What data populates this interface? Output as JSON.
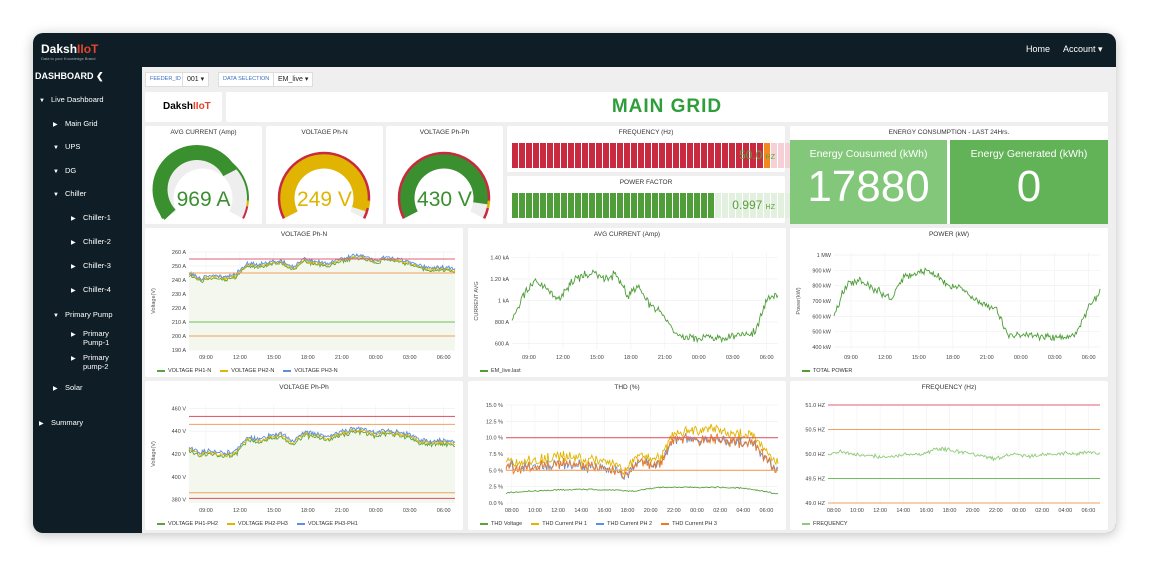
{
  "brand": {
    "name": "Daksh",
    "suffix": "IIoT",
    "tagline": "Data to your Knowledge Brand"
  },
  "topnav": {
    "home": "Home",
    "account": "Account ▾"
  },
  "sidebar": {
    "title": "DASHBOARD",
    "collapse_icon": "chevron-left-icon",
    "items": [
      {
        "label": "Live Dashboard",
        "arrow": "▼"
      },
      {
        "label": "Main Grid",
        "arrow": "▶"
      },
      {
        "label": "UPS",
        "arrow": "▼"
      },
      {
        "label": "DG",
        "arrow": "▼"
      },
      {
        "label": "Chiller",
        "arrow": "▼"
      },
      {
        "label": "Chiller-1",
        "arrow": "▶"
      },
      {
        "label": "Chiller-2",
        "arrow": "▶"
      },
      {
        "label": "Chiller-3",
        "arrow": "▶"
      },
      {
        "label": "Chiller-4",
        "arrow": "▶"
      },
      {
        "label": "Primary Pump",
        "arrow": "▼"
      },
      {
        "label": "Primary Pump-1",
        "arrow": "▶"
      },
      {
        "label": "Primary pump-2",
        "arrow": "▶"
      },
      {
        "label": "Solar",
        "arrow": "▶"
      },
      {
        "label": "Summary",
        "arrow": "▶"
      }
    ]
  },
  "filters": {
    "feeder_label": "FEEDER_ID",
    "feeder_value": "001 ▾",
    "data_label": "DATA SELECTION",
    "data_value": "EM_live ▾"
  },
  "page_title": "MAIN GRID",
  "gauges": [
    {
      "title": "AVG CURRENT (Amp)",
      "value": "969 A",
      "fraction": 0.7,
      "color": "#3a8f2e"
    },
    {
      "title": "VOLTAGE Ph-N",
      "value": "249 V",
      "fraction": 0.96,
      "color": "#e0b400"
    },
    {
      "title": "VOLTAGE Ph-Ph",
      "value": "430 V",
      "fraction": 0.92,
      "color": "#3a8f2e"
    }
  ],
  "frequency_bar": {
    "title": "FREQUENCY (Hz)",
    "value": "50.0",
    "unit": "HZ",
    "fraction": 0.89,
    "color": "#c92a3f"
  },
  "pf_bar": {
    "title": "POWER FACTOR",
    "value": "0.997",
    "unit": "HZ",
    "fraction": 0.73,
    "color": "#4f9e3a"
  },
  "energy": {
    "title": "ENERGY CONSUMPTION - LAST 24Hrs.",
    "consumed_label": "Energy Cousumed (kWh)",
    "consumed": "17880",
    "generated_label": "Energy Generated (kWh)",
    "generated": "0"
  },
  "chart_data": [
    {
      "id": "vpn",
      "type": "line",
      "title": "VOLTAGE Ph-N",
      "ylabel": "Voltage(V)",
      "ylim": [
        190,
        260
      ],
      "yticks": [
        190,
        200,
        210,
        220,
        230,
        240,
        250,
        260
      ],
      "yunit": " A",
      "x_start_hour": 7.5,
      "x_end_hour": 31,
      "xticks": [
        "09:00",
        "12:00",
        "15:00",
        "18:00",
        "21:00",
        "00:00",
        "03:00",
        "06:00"
      ],
      "xtick_start": 9,
      "xtick_step": 3,
      "noise": 2,
      "thresholds": [
        {
          "value": 255,
          "color": "#e06070"
        },
        {
          "value": 245,
          "color": "#f0a060"
        },
        {
          "value": 210,
          "color": "#6cbf5c"
        },
        {
          "value": 200,
          "color": "#f0a060"
        }
      ],
      "series": [
        {
          "name": "VOLTAGE PH1-N",
          "color": "#5aa33e",
          "offset": -1,
          "values": [
            245,
            240,
            243,
            241,
            243,
            251,
            250,
            252,
            253,
            248,
            254,
            252,
            251,
            254,
            256,
            257,
            253,
            255,
            254,
            252,
            249,
            248,
            248,
            247
          ]
        },
        {
          "name": "VOLTAGE PH2-N",
          "color": "#e0b400",
          "offset": 0,
          "values": [
            245,
            240,
            243,
            241,
            243,
            251,
            250,
            252,
            253,
            248,
            254,
            252,
            251,
            254,
            256,
            257,
            253,
            255,
            254,
            252,
            249,
            248,
            248,
            247
          ]
        },
        {
          "name": "VOLTAGE PH3-N",
          "color": "#5b8fe0",
          "offset": 1,
          "values": [
            245,
            240,
            243,
            241,
            243,
            251,
            250,
            252,
            253,
            248,
            254,
            252,
            251,
            254,
            256,
            257,
            253,
            255,
            254,
            252,
            249,
            248,
            248,
            247
          ]
        }
      ]
    },
    {
      "id": "cur",
      "type": "line",
      "title": "AVG CURRENT (Amp)",
      "ylabel": "CURRENT AVG",
      "ylim": [
        540,
        1450
      ],
      "yticks": [
        600,
        800,
        1000,
        1200,
        1400
      ],
      "yticklabels": [
        "600 A",
        "800 A",
        "1 kA",
        "1.20 kA",
        "1.40 kA"
      ],
      "x_start_hour": 7.5,
      "x_end_hour": 31,
      "xticks": [
        "09:00",
        "12:00",
        "15:00",
        "18:00",
        "21:00",
        "00:00",
        "03:00",
        "06:00"
      ],
      "xtick_start": 9,
      "xtick_step": 3,
      "noise": 60,
      "thresholds": [],
      "series": [
        {
          "name": "EM_live.last",
          "color": "#4f9e3a",
          "offset": 0,
          "values": [
            820,
            1050,
            1180,
            1120,
            1000,
            1150,
            1230,
            1260,
            1200,
            1250,
            1050,
            1120,
            950,
            880,
            700,
            660,
            650,
            670,
            650,
            660,
            680,
            700,
            1000,
            1050
          ]
        }
      ]
    },
    {
      "id": "pow",
      "type": "line",
      "title": "POWER (kW)",
      "ylabel": "Power(kW)",
      "ylim": [
        380,
        1020
      ],
      "yticks": [
        400,
        500,
        600,
        700,
        800,
        900,
        1000
      ],
      "yticklabels": [
        "400 kW",
        "500 kW",
        "600 kW",
        "700 kW",
        "800 kW",
        "900 kW",
        "1 MW"
      ],
      "x_start_hour": 7.5,
      "x_end_hour": 31,
      "xticks": [
        "09:00",
        "12:00",
        "15:00",
        "18:00",
        "21:00",
        "00:00",
        "03:00",
        "06:00"
      ],
      "xtick_start": 9,
      "xtick_step": 3,
      "noise": 40,
      "thresholds": [],
      "series": [
        {
          "name": "TOTAL POWER",
          "color": "#4f9e3a",
          "offset": 0,
          "values": [
            600,
            800,
            840,
            800,
            760,
            720,
            860,
            880,
            900,
            860,
            800,
            780,
            720,
            680,
            650,
            480,
            470,
            480,
            470,
            460,
            470,
            480,
            650,
            760
          ]
        }
      ]
    },
    {
      "id": "vpp",
      "type": "line",
      "title": "VOLTAGE Ph-Ph",
      "ylabel": "Voltage(V)",
      "ylim": [
        377,
        463
      ],
      "yticks": [
        380,
        400,
        420,
        440,
        460
      ],
      "yunit": " V",
      "x_start_hour": 7.5,
      "x_end_hour": 31,
      "xticks": [
        "09:00",
        "12:00",
        "15:00",
        "18:00",
        "21:00",
        "00:00",
        "03:00",
        "06:00"
      ],
      "xtick_start": 9,
      "xtick_step": 3,
      "noise": 3,
      "thresholds": [
        {
          "value": 453,
          "color": "#e06070"
        },
        {
          "value": 446,
          "color": "#f0a060"
        },
        {
          "value": 386,
          "color": "#f0a060"
        },
        {
          "value": 381,
          "color": "#e06070"
        }
      ],
      "series": [
        {
          "name": "VOLTAGE PH1-PH2",
          "color": "#5aa33e",
          "offset": -1.5,
          "values": [
            425,
            420,
            422,
            419,
            421,
            433,
            432,
            435,
            436,
            430,
            438,
            436,
            434,
            437,
            440,
            441,
            437,
            439,
            438,
            436,
            431,
            430,
            430,
            429
          ]
        },
        {
          "name": "VOLTAGE PH2-PH3",
          "color": "#e0b400",
          "offset": 0,
          "values": [
            425,
            420,
            422,
            419,
            421,
            433,
            432,
            435,
            436,
            430,
            438,
            436,
            434,
            437,
            440,
            441,
            437,
            439,
            438,
            436,
            431,
            430,
            430,
            429
          ]
        },
        {
          "name": "VOLTAGE PH3-PH1",
          "color": "#5b8fe0",
          "offset": 1.5,
          "values": [
            425,
            420,
            422,
            419,
            421,
            433,
            432,
            435,
            436,
            430,
            438,
            436,
            434,
            437,
            440,
            441,
            437,
            439,
            438,
            436,
            431,
            430,
            430,
            429
          ]
        }
      ]
    },
    {
      "id": "thd",
      "type": "line",
      "title": "THD (%)",
      "ylabel": "",
      "ylim": [
        0,
        15
      ],
      "yticks": [
        0,
        2.5,
        5,
        7.5,
        10,
        12.5,
        15
      ],
      "yticklabels": [
        "0.0 %",
        "2.5 %",
        "5.0 %",
        "7.5 %",
        "10.0 %",
        "12.5 %",
        "15.0 %"
      ],
      "x_start_hour": 7.5,
      "x_end_hour": 31,
      "xticks": [
        "08:00",
        "10:00",
        "12:00",
        "14:00",
        "16:00",
        "18:00",
        "20:00",
        "22:00",
        "00:00",
        "02:00",
        "04:00",
        "06:00"
      ],
      "xtick_start": 8,
      "xtick_step": 2,
      "noise": 1.3,
      "thresholds": [
        {
          "value": 10,
          "color": "#e06070"
        },
        {
          "value": 5,
          "color": "#f0a060"
        }
      ],
      "series": [
        {
          "name": "THD Voltage",
          "color": "#5aa33e",
          "offset": 0,
          "noise": 0.15,
          "values": [
            1.5,
            1.7,
            1.8,
            1.9,
            2,
            2,
            2.1,
            2.1,
            2,
            2,
            1.9,
            1.8,
            2.2,
            2.4,
            2.4,
            2.4,
            2.4,
            2.4,
            2.4,
            2.3,
            2.3,
            2,
            1.7,
            1.4
          ]
        },
        {
          "name": "THD Current PH 1",
          "color": "#e0b400",
          "offset": 0.6,
          "values": [
            6,
            5.5,
            5.8,
            6.2,
            6.5,
            6.5,
            6.2,
            6,
            5.8,
            5.5,
            4.5,
            6.5,
            6.5,
            6,
            9.8,
            10.2,
            10.5,
            10.8,
            10.5,
            10,
            9.8,
            9.5,
            7,
            5.5
          ]
        },
        {
          "name": "THD Current PH 2",
          "color": "#5b8fe0",
          "offset": 0,
          "values": [
            5.8,
            5.2,
            5.5,
            5.8,
            6,
            6,
            5.8,
            5.6,
            5.4,
            5,
            4.2,
            6,
            6.2,
            5.8,
            9.5,
            9.8,
            9.6,
            9.8,
            9.6,
            9.3,
            9.2,
            9,
            6.5,
            5
          ]
        },
        {
          "name": "THD Current PH 3",
          "color": "#f07a20",
          "offset": 0,
          "values": [
            5.8,
            5.2,
            5.5,
            5.8,
            6,
            6,
            5.8,
            5.6,
            5.4,
            5,
            4.3,
            6,
            6.2,
            5.8,
            9.5,
            9.8,
            9.6,
            9.8,
            9.6,
            9.3,
            9.2,
            9,
            6.5,
            5
          ]
        }
      ]
    },
    {
      "id": "frq",
      "type": "line",
      "title": "FREQUENCY (Hz)",
      "ylabel": "",
      "ylim": [
        49,
        51
      ],
      "yticks": [
        49,
        49.5,
        50,
        50.5,
        51
      ],
      "yticklabels": [
        "49.0 HZ",
        "49.5 HZ",
        "50.0 HZ",
        "50.5 HZ",
        "51.0 HZ"
      ],
      "x_start_hour": 7.5,
      "x_end_hour": 31,
      "xticks": [
        "08:00",
        "10:00",
        "12:00",
        "14:00",
        "16:00",
        "18:00",
        "20:00",
        "22:00",
        "00:00",
        "02:00",
        "04:00",
        "06:00"
      ],
      "xtick_start": 8,
      "xtick_step": 2,
      "noise": 0.06,
      "thresholds": [
        {
          "value": 51,
          "color": "#e06070"
        },
        {
          "value": 50.5,
          "color": "#f0a060"
        },
        {
          "value": 49.5,
          "color": "#6cbf5c"
        },
        {
          "value": 49,
          "color": "#f0a060"
        }
      ],
      "series": [
        {
          "name": "FREQUENCY",
          "color": "#8fcb7a",
          "offset": 0,
          "values": [
            50,
            50.05,
            50,
            49.98,
            49.95,
            49.95,
            49.98,
            50,
            50,
            50.1,
            50.1,
            50.05,
            50,
            49.95,
            49.9,
            49.95,
            50,
            49.95,
            49.98,
            50,
            50.02,
            50,
            50.05,
            50
          ]
        }
      ]
    }
  ]
}
